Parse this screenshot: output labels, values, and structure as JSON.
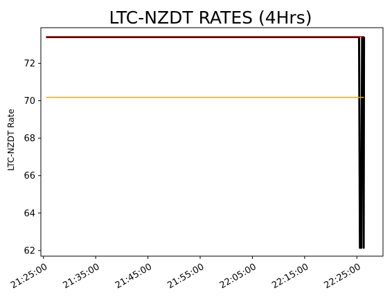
{
  "chart_data": {
    "type": "line",
    "title": "LTC-NZDT RATES (4Hrs)",
    "xlabel": "",
    "ylabel": "LTC-NZDT Rate",
    "x_ticks": [
      "21:25:00",
      "21:35:00",
      "21:45:00",
      "21:55:00",
      "22:05:00",
      "22:15:00",
      "22:25:00"
    ],
    "y_ticks": [
      62,
      64,
      66,
      68,
      70,
      72
    ],
    "xlim": [
      "21:24:30",
      "22:30:00"
    ],
    "ylim": [
      61.7,
      73.9
    ],
    "grid": false,
    "series": [
      {
        "color": "#000000",
        "points": [
          [
            "21:25:30",
            73.4
          ],
          [
            "22:25:00",
            73.4
          ],
          [
            "22:25:25",
            73.4
          ],
          [
            "22:25:35",
            62.15
          ],
          [
            "22:25:50",
            62.15
          ],
          [
            "22:26:00",
            73.4
          ],
          [
            "22:26:15",
            73.4
          ],
          [
            "22:26:18",
            62.15
          ],
          [
            "22:26:22",
            73.4
          ]
        ]
      },
      {
        "color": "#e41a1c",
        "points": [
          [
            "21:25:30",
            73.42
          ],
          [
            "22:26:22",
            73.42
          ]
        ]
      },
      {
        "color": "#ffa500",
        "points": [
          [
            "21:25:30",
            70.18
          ],
          [
            "22:26:22",
            70.18
          ]
        ]
      }
    ]
  }
}
